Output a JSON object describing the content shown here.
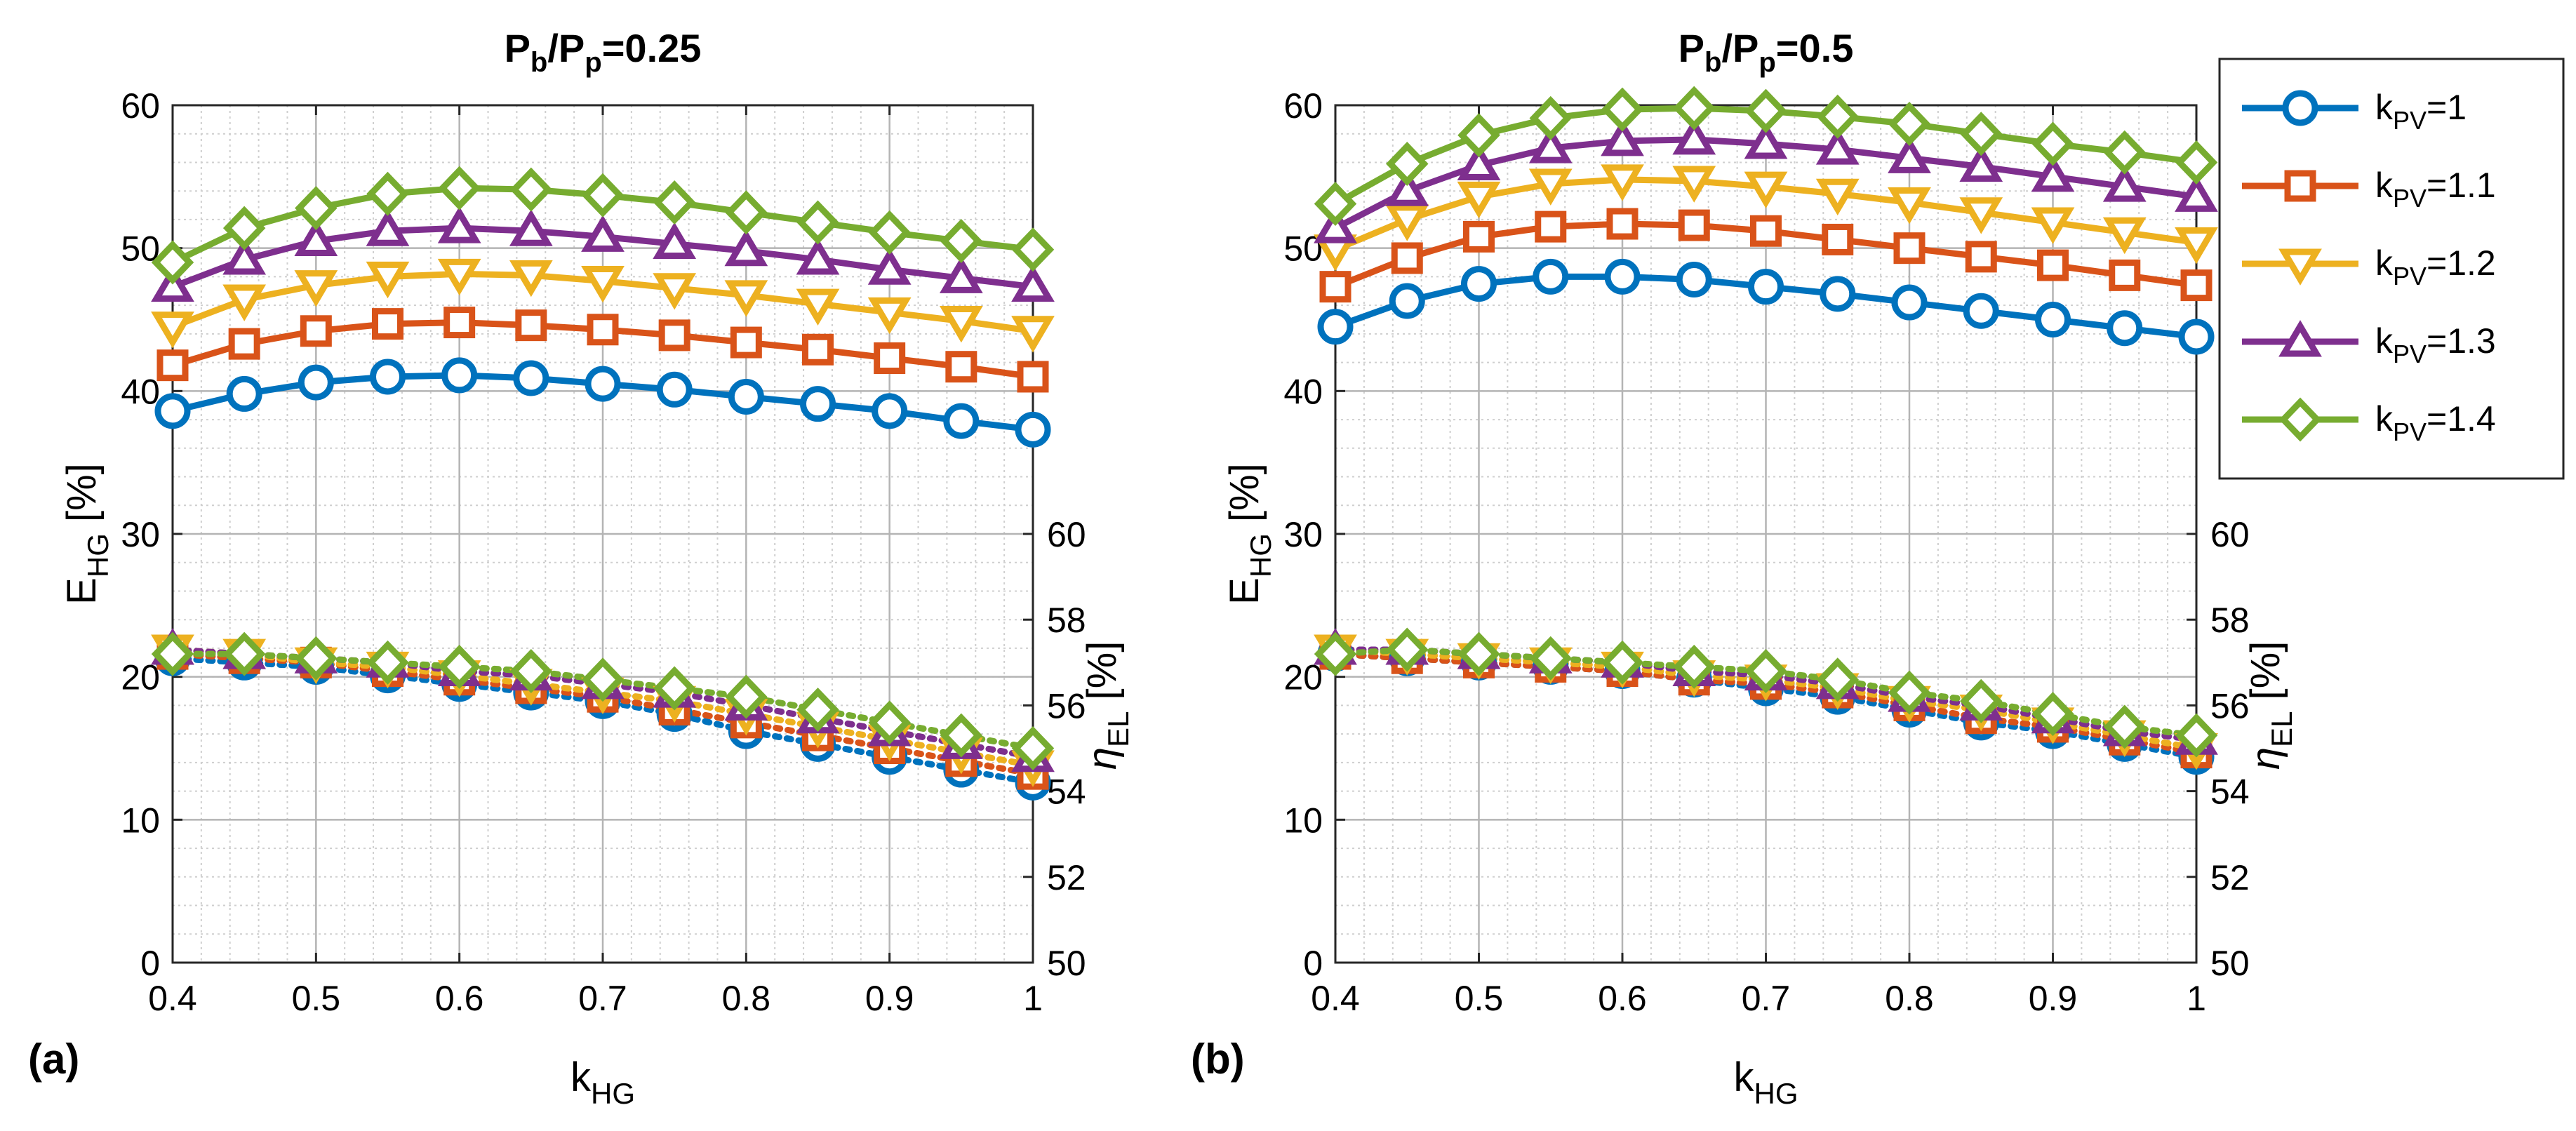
{
  "colors": {
    "series": [
      "#0072BD",
      "#D95319",
      "#EDB120",
      "#7E2F8E",
      "#77AC30"
    ],
    "grid": "#b4b4b4",
    "axis": "#262626"
  },
  "legend": {
    "entries": [
      {
        "base": "k",
        "sub": "PV",
        "suffix": "=1"
      },
      {
        "base": "k",
        "sub": "PV",
        "suffix": "=1.1"
      },
      {
        "base": "k",
        "sub": "PV",
        "suffix": "=1.2"
      },
      {
        "base": "k",
        "sub": "PV",
        "suffix": "=1.3"
      },
      {
        "base": "k",
        "sub": "PV",
        "suffix": "=1.4"
      }
    ],
    "placement": "right of panel b"
  },
  "chart_data": [
    {
      "type": "line",
      "panel_label": "(a)",
      "title": {
        "parts": [
          {
            "t": "P"
          },
          {
            "t": "b",
            "sub": true
          },
          {
            "t": "/P"
          },
          {
            "t": "p",
            "sub": true
          },
          {
            "t": "=0.25"
          }
        ]
      },
      "xlabel": {
        "base": "k",
        "sub": "HG"
      },
      "ylabel_left": {
        "base": "E",
        "sub": "HG",
        "suffix": " [%]"
      },
      "ylabel_right": {
        "base": "η",
        "sub": "EL",
        "suffix": " [%]"
      },
      "xlim": [
        0.4,
        1.0
      ],
      "ylim_left": [
        0,
        60
      ],
      "ylim_right": [
        50,
        70
      ],
      "xticks": [
        "0.4",
        "0.5",
        "0.6",
        "0.7",
        "0.8",
        "0.9",
        "1"
      ],
      "yticks_left": [
        "0",
        "10",
        "20",
        "30",
        "40",
        "50",
        "60"
      ],
      "yticks_right": [
        "50",
        "52",
        "54",
        "56",
        "58",
        "60"
      ],
      "grid": true,
      "x": [
        0.4,
        0.45,
        0.5,
        0.55,
        0.6,
        0.65,
        0.7,
        0.75,
        0.8,
        0.85,
        0.9,
        0.95,
        1.0
      ],
      "series_left": [
        {
          "name": "k_PV=1",
          "marker": "circle",
          "values": [
            38.6,
            39.8,
            40.6,
            41.0,
            41.1,
            40.9,
            40.5,
            40.1,
            39.6,
            39.1,
            38.6,
            37.9,
            37.3
          ]
        },
        {
          "name": "k_PV=1.1",
          "marker": "square",
          "values": [
            41.8,
            43.3,
            44.2,
            44.7,
            44.8,
            44.6,
            44.3,
            43.9,
            43.4,
            42.9,
            42.3,
            41.7,
            41.0
          ]
        },
        {
          "name": "k_PV=1.2",
          "marker": "triangle-down",
          "values": [
            44.5,
            46.4,
            47.4,
            48.0,
            48.2,
            48.1,
            47.7,
            47.2,
            46.7,
            46.1,
            45.5,
            44.9,
            44.2
          ]
        },
        {
          "name": "k_PV=1.3",
          "marker": "triangle-up",
          "values": [
            47.3,
            49.2,
            50.5,
            51.2,
            51.4,
            51.2,
            50.8,
            50.3,
            49.8,
            49.2,
            48.5,
            47.9,
            47.3
          ]
        },
        {
          "name": "k_PV=1.4",
          "marker": "diamond",
          "values": [
            49.0,
            51.4,
            52.8,
            53.8,
            54.2,
            54.1,
            53.7,
            53.2,
            52.5,
            51.8,
            51.1,
            50.5,
            49.9
          ]
        }
      ],
      "series_right": [
        {
          "name": "k_PV=1",
          "marker": "circle",
          "values": [
            57.1,
            57.0,
            56.9,
            56.7,
            56.5,
            56.3,
            56.1,
            55.8,
            55.4,
            55.1,
            54.8,
            54.5,
            54.2
          ]
        },
        {
          "name": "k_PV=1.1",
          "marker": "square",
          "values": [
            57.2,
            57.1,
            57.0,
            56.8,
            56.6,
            56.4,
            56.2,
            55.9,
            55.6,
            55.3,
            55.0,
            54.7,
            54.4
          ]
        },
        {
          "name": "k_PV=1.2",
          "marker": "triangle-down",
          "values": [
            57.3,
            57.2,
            57.0,
            56.9,
            56.7,
            56.5,
            56.3,
            56.1,
            55.8,
            55.5,
            55.2,
            54.9,
            54.6
          ]
        },
        {
          "name": "k_PV=1.3",
          "marker": "triangle-up",
          "values": [
            57.3,
            57.2,
            57.1,
            57.0,
            56.8,
            56.7,
            56.5,
            56.3,
            56.0,
            55.7,
            55.4,
            55.1,
            54.8
          ]
        },
        {
          "name": "k_PV=1.4",
          "marker": "diamond",
          "values": [
            57.2,
            57.2,
            57.1,
            57.0,
            56.9,
            56.8,
            56.6,
            56.4,
            56.2,
            55.9,
            55.6,
            55.3,
            55.0
          ]
        }
      ]
    },
    {
      "type": "line",
      "panel_label": "(b)",
      "title": {
        "parts": [
          {
            "t": "P"
          },
          {
            "t": "b",
            "sub": true
          },
          {
            "t": "/P"
          },
          {
            "t": "p",
            "sub": true
          },
          {
            "t": "=0.5"
          }
        ]
      },
      "xlabel": {
        "base": "k",
        "sub": "HG"
      },
      "ylabel_left": {
        "base": "E",
        "sub": "HG",
        "suffix": " [%]"
      },
      "ylabel_right": {
        "base": "η",
        "sub": "EL",
        "suffix": " [%]"
      },
      "xlim": [
        0.4,
        1.0
      ],
      "ylim_left": [
        0,
        60
      ],
      "ylim_right": [
        50,
        70
      ],
      "xticks": [
        "0.4",
        "0.5",
        "0.6",
        "0.7",
        "0.8",
        "0.9",
        "1"
      ],
      "yticks_left": [
        "0",
        "10",
        "20",
        "30",
        "40",
        "50",
        "60"
      ],
      "yticks_right": [
        "50",
        "52",
        "54",
        "56",
        "58",
        "60"
      ],
      "grid": true,
      "x": [
        0.4,
        0.45,
        0.5,
        0.55,
        0.6,
        0.65,
        0.7,
        0.75,
        0.8,
        0.85,
        0.9,
        0.95,
        1.0
      ],
      "series_left": [
        {
          "name": "k_PV=1",
          "marker": "circle",
          "values": [
            44.5,
            46.3,
            47.5,
            48.0,
            48.0,
            47.8,
            47.3,
            46.8,
            46.2,
            45.6,
            45.0,
            44.4,
            43.8
          ]
        },
        {
          "name": "k_PV=1.1",
          "marker": "square",
          "values": [
            47.3,
            49.3,
            50.8,
            51.5,
            51.7,
            51.6,
            51.2,
            50.6,
            50.0,
            49.4,
            48.8,
            48.1,
            47.4
          ]
        },
        {
          "name": "k_PV=1.2",
          "marker": "triangle-down",
          "values": [
            49.9,
            52.0,
            53.6,
            54.5,
            54.8,
            54.7,
            54.3,
            53.8,
            53.2,
            52.5,
            51.8,
            51.1,
            50.4
          ]
        },
        {
          "name": "k_PV=1.3",
          "marker": "triangle-up",
          "values": [
            51.4,
            54.0,
            55.8,
            57.0,
            57.5,
            57.6,
            57.3,
            56.9,
            56.3,
            55.7,
            55.0,
            54.3,
            53.6
          ]
        },
        {
          "name": "k_PV=1.4",
          "marker": "diamond",
          "values": [
            53.1,
            55.9,
            57.9,
            59.1,
            59.7,
            59.8,
            59.6,
            59.2,
            58.7,
            58.0,
            57.3,
            56.7,
            56.0
          ]
        }
      ],
      "series_right": [
        {
          "name": "k_PV=1",
          "marker": "circle",
          "values": [
            57.2,
            57.1,
            57.0,
            56.9,
            56.8,
            56.6,
            56.4,
            56.2,
            55.9,
            55.6,
            55.4,
            55.1,
            54.8
          ]
        },
        {
          "name": "k_PV=1.1",
          "marker": "square",
          "values": [
            57.2,
            57.1,
            57.0,
            56.9,
            56.8,
            56.6,
            56.5,
            56.3,
            56.0,
            55.7,
            55.5,
            55.2,
            54.9
          ]
        },
        {
          "name": "k_PV=1.2",
          "marker": "triangle-down",
          "values": [
            57.3,
            57.2,
            57.1,
            57.0,
            56.9,
            56.7,
            56.6,
            56.4,
            56.1,
            55.9,
            55.6,
            55.3,
            55.0
          ]
        },
        {
          "name": "k_PV=1.3",
          "marker": "triangle-up",
          "values": [
            57.3,
            57.3,
            57.2,
            57.1,
            57.0,
            56.8,
            56.7,
            56.5,
            56.2,
            56.0,
            55.7,
            55.4,
            55.2
          ]
        },
        {
          "name": "k_PV=1.4",
          "marker": "diamond",
          "values": [
            57.2,
            57.3,
            57.2,
            57.1,
            57.0,
            56.9,
            56.8,
            56.6,
            56.3,
            56.1,
            55.8,
            55.5,
            55.3
          ]
        }
      ]
    }
  ]
}
